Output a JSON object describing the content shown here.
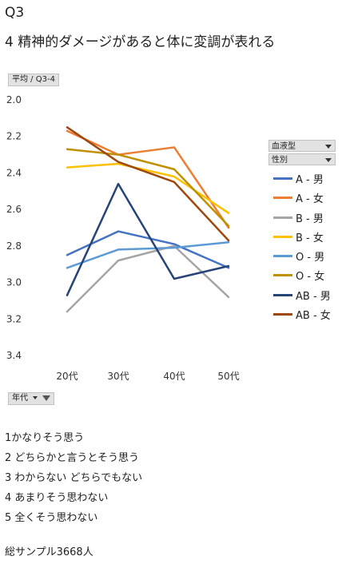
{
  "page": {
    "title": "Q3",
    "subtitle": "4 精神的ダメージがあると体に変調が表れる",
    "value_field": "平均 / Q3-4",
    "filters": [
      {
        "label": "血液型"
      },
      {
        "label": "性別"
      }
    ],
    "axis_field": "年代",
    "notes": [
      "1かなりそう思う",
      "2 どちらかと言うとそう思う",
      "3 わからない どちらでもない",
      "4 あまりそう思わない",
      "5 全くそう思わない"
    ],
    "sample": "総サンプル3668人"
  },
  "chart_data": {
    "type": "line",
    "categories": [
      "20代",
      "30代",
      "40代",
      "50代"
    ],
    "ylim": [
      2.0,
      3.4
    ],
    "y_reversed": true,
    "y_ticks": [
      "2.0",
      "2.2",
      "2.4",
      "2.6",
      "2.8",
      "3.0",
      "3.2",
      "3.4"
    ],
    "series": [
      {
        "name": "A - 男",
        "color": "#4472C4",
        "values": [
          2.85,
          2.72,
          2.79,
          2.92
        ]
      },
      {
        "name": "A - 女",
        "color": "#ED7D31",
        "values": [
          2.17,
          2.3,
          2.26,
          2.7
        ]
      },
      {
        "name": "B - 男",
        "color": "#A5A5A5",
        "values": [
          3.16,
          2.88,
          2.8,
          3.08
        ]
      },
      {
        "name": "B - 女",
        "color": "#FFC000",
        "values": [
          2.37,
          2.35,
          2.42,
          2.62
        ]
      },
      {
        "name": "O - 男",
        "color": "#5B9BD5",
        "values": [
          2.92,
          2.82,
          2.81,
          2.78
        ]
      },
      {
        "name": "O - 女",
        "color": "#BF9000",
        "values": [
          2.27,
          2.3,
          2.38,
          2.69
        ]
      },
      {
        "name": "AB - 男",
        "color": "#264478",
        "values": [
          3.07,
          2.46,
          2.98,
          2.91
        ]
      },
      {
        "name": "AB - 女",
        "color": "#9E480E",
        "values": [
          2.15,
          2.34,
          2.45,
          2.77
        ]
      }
    ]
  }
}
